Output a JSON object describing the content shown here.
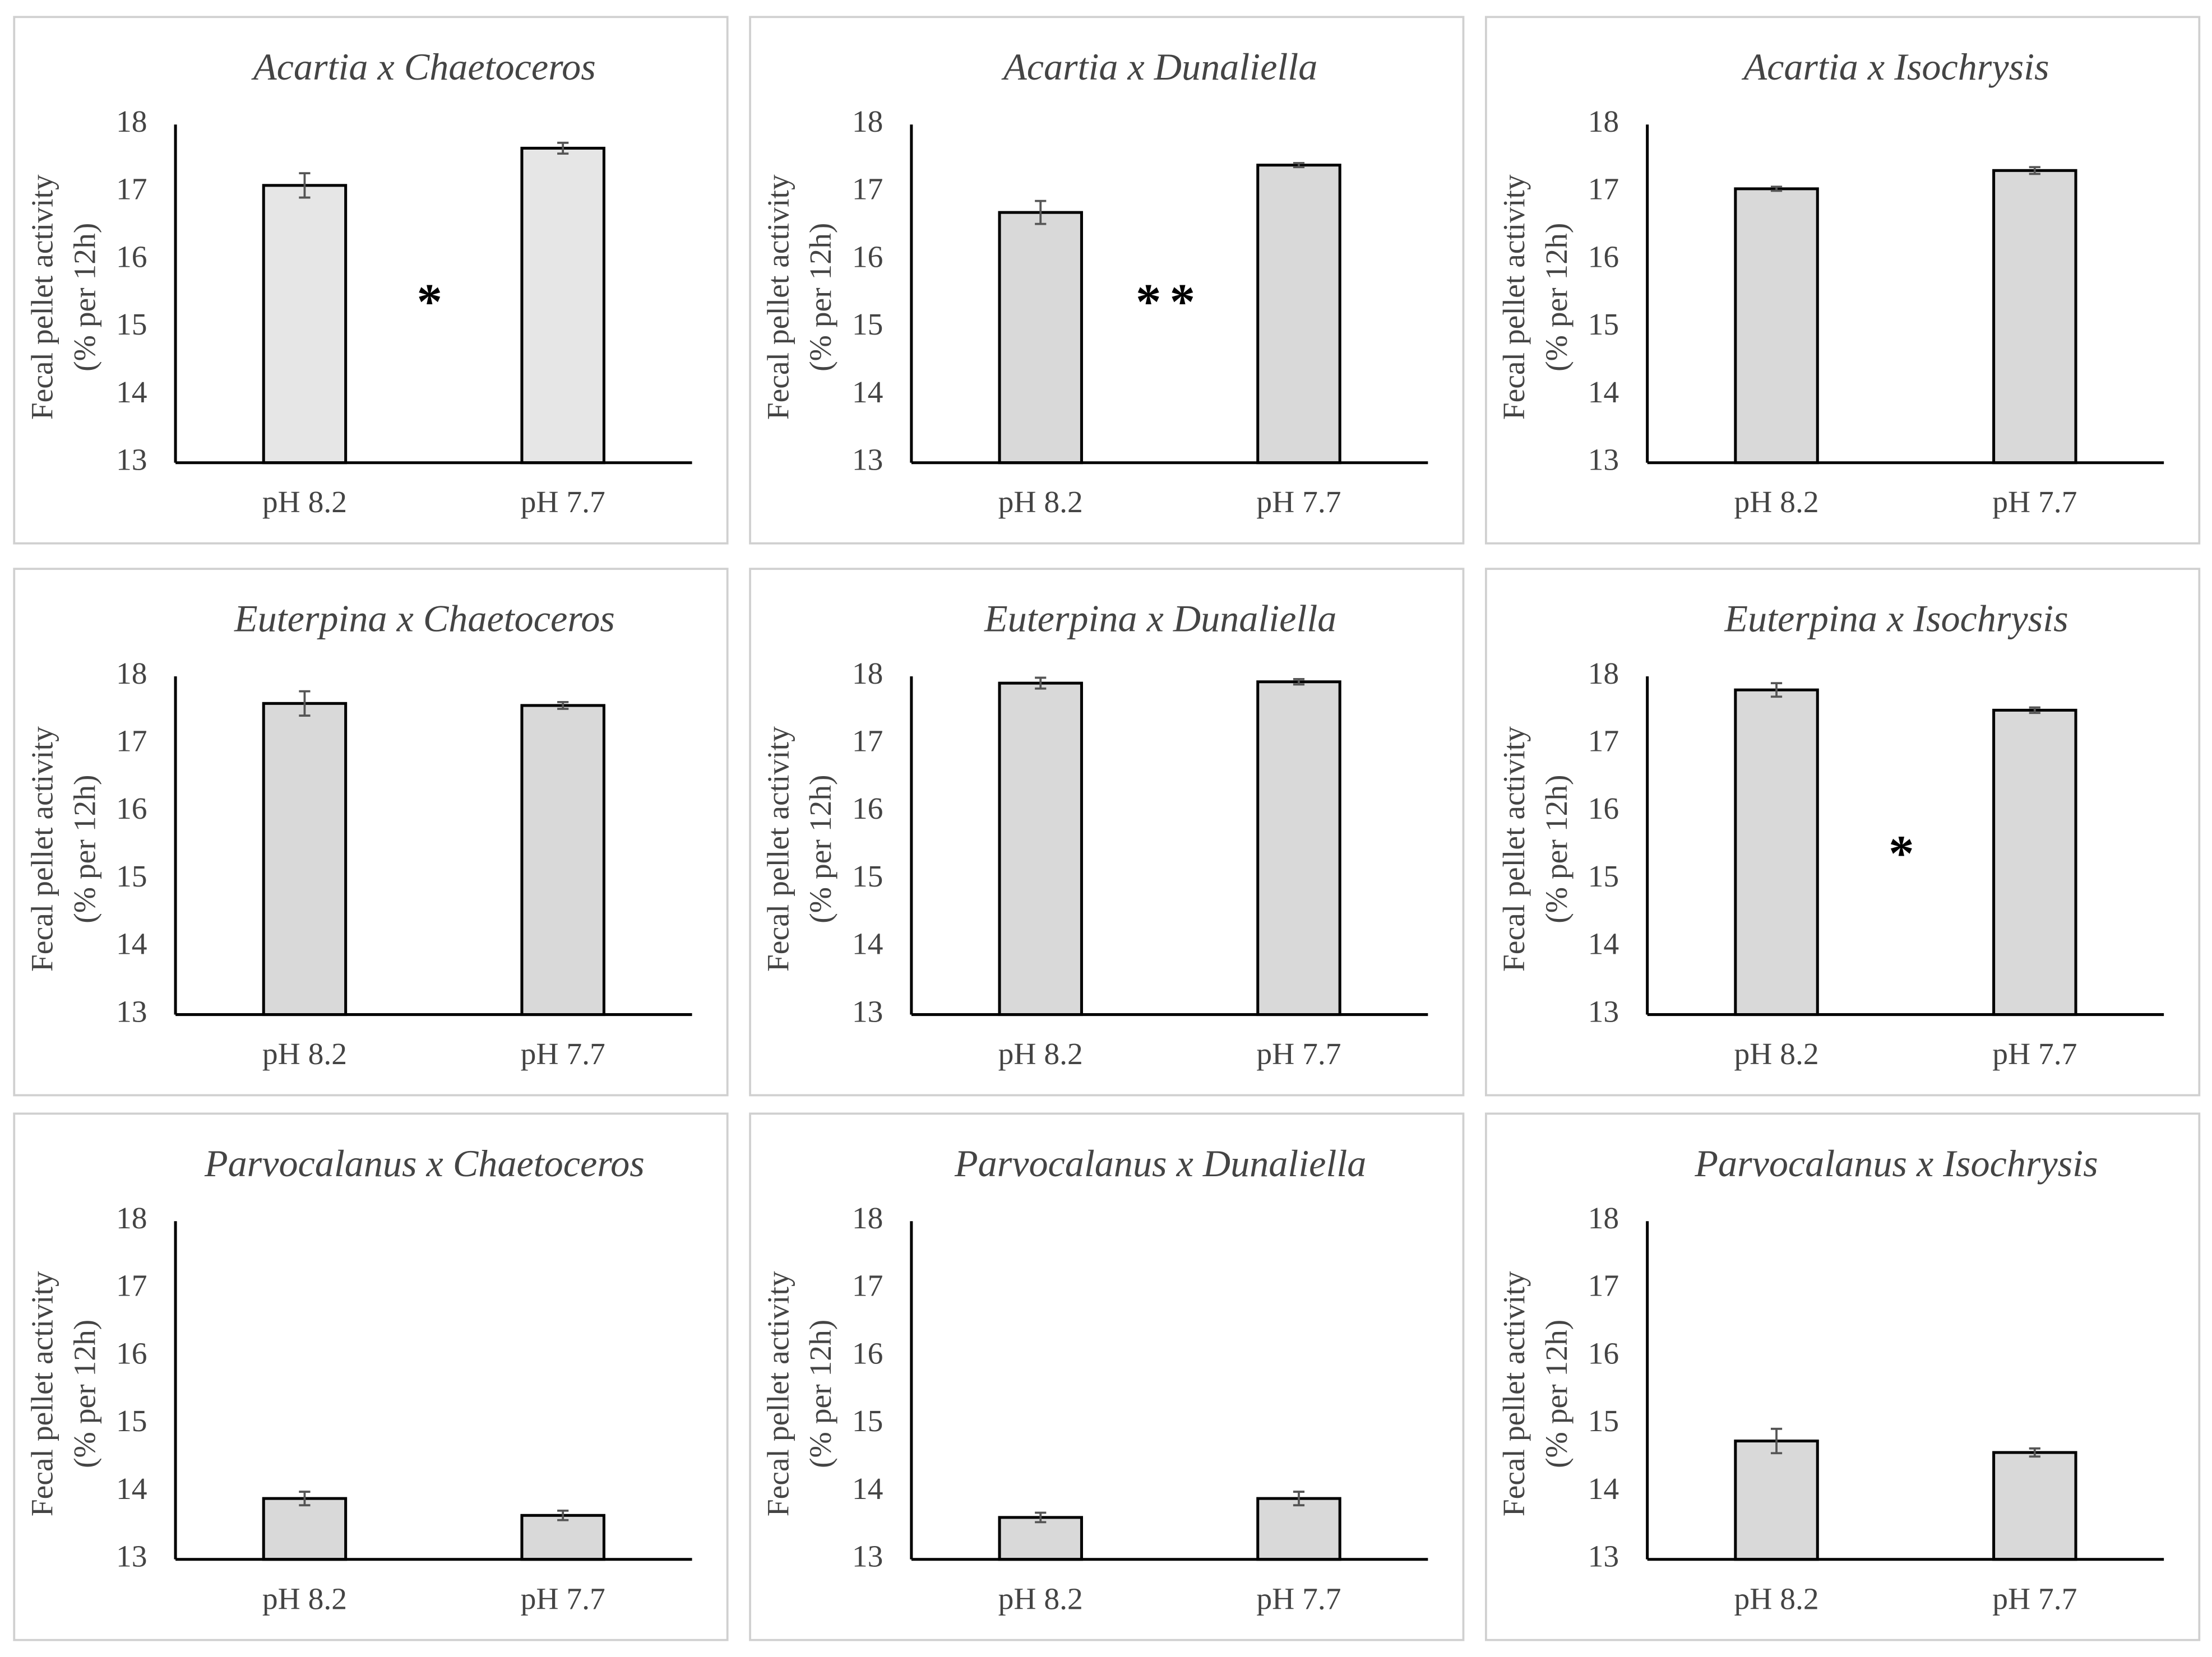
{
  "chart_data": [
    {
      "type": "bar",
      "title": "Acartia x Chaetoceros",
      "ylabel": [
        "Fecal pellet activity",
        "(% per 12h)"
      ],
      "categories": [
        "pH 8.2",
        "pH 7.7"
      ],
      "values": [
        17.1,
        17.65
      ],
      "errors": [
        0.18,
        0.08
      ],
      "color": "#e6e6e6",
      "ylim": [
        13,
        18
      ],
      "yticks": [
        13,
        14,
        15,
        16,
        17,
        18
      ],
      "annotation": "*"
    },
    {
      "type": "bar",
      "title": "Acartia x Dunaliella",
      "ylabel": [
        "Fecal pellet activity",
        "(% per 12h)"
      ],
      "categories": [
        "pH 8.2",
        "pH 7.7"
      ],
      "values": [
        16.7,
        17.4
      ],
      "errors": [
        0.17,
        0.03
      ],
      "color": "#d9d9d9",
      "ylim": [
        13,
        18
      ],
      "yticks": [
        13,
        14,
        15,
        16,
        17,
        18
      ],
      "annotation": "**"
    },
    {
      "type": "bar",
      "title": "Acartia x Isochrysis",
      "ylabel": [
        "Fecal pellet activity",
        "(% per 12h)"
      ],
      "categories": [
        "pH 8.2",
        "pH 7.7"
      ],
      "values": [
        17.05,
        17.32
      ],
      "errors": [
        0.03,
        0.05
      ],
      "color": "#d9d9d9",
      "ylim": [
        13,
        18
      ],
      "yticks": [
        13,
        14,
        15,
        16,
        17,
        18
      ]
    },
    {
      "type": "bar",
      "title": "Euterpina x Chaetoceros",
      "ylabel": [
        "Fecal pellet activity",
        "(% per 12h)"
      ],
      "categories": [
        "pH 8.2",
        "pH 7.7"
      ],
      "values": [
        17.6,
        17.57
      ],
      "errors": [
        0.18,
        0.05
      ],
      "color": "#d9d9d9",
      "ylim": [
        13,
        18
      ],
      "yticks": [
        13,
        14,
        15,
        16,
        17,
        18
      ]
    },
    {
      "type": "bar",
      "title": "Euterpina x Dunaliella",
      "ylabel": [
        "Fecal pellet activity",
        "(% per 12h)"
      ],
      "categories": [
        "pH 8.2",
        "pH 7.7"
      ],
      "values": [
        17.9,
        17.92
      ],
      "errors": [
        0.08,
        0.04
      ],
      "color": "#d9d9d9",
      "ylim": [
        13,
        18
      ],
      "yticks": [
        13,
        14,
        15,
        16,
        17,
        18
      ]
    },
    {
      "type": "bar",
      "title": "Euterpina x Isochrysis",
      "ylabel": [
        "Fecal pellet activity",
        "(% per 12h)"
      ],
      "categories": [
        "pH 8.2",
        "pH 7.7"
      ],
      "values": [
        17.8,
        17.5
      ],
      "errors": [
        0.1,
        0.04
      ],
      "color": "#d9d9d9",
      "ylim": [
        13,
        18
      ],
      "yticks": [
        13,
        14,
        15,
        16,
        17,
        18
      ],
      "annotation": "*"
    },
    {
      "type": "bar",
      "title": "Parvocalanus x Chaetoceros",
      "ylabel": [
        "Fecal pellet activity",
        "(% per 12h)"
      ],
      "categories": [
        "pH 8.2",
        "pH 7.7"
      ],
      "values": [
        13.9,
        13.65
      ],
      "errors": [
        0.1,
        0.07
      ],
      "color": "#d9d9d9",
      "ylim": [
        13,
        18
      ],
      "yticks": [
        13,
        14,
        15,
        16,
        17,
        18
      ]
    },
    {
      "type": "bar",
      "title": "Parvocalanus x Dunaliella",
      "ylabel": [
        "Fecal pellet activity",
        "(% per 12h)"
      ],
      "categories": [
        "pH 8.2",
        "pH 7.7"
      ],
      "values": [
        13.62,
        13.9
      ],
      "errors": [
        0.07,
        0.1
      ],
      "color": "#d9d9d9",
      "ylim": [
        13,
        18
      ],
      "yticks": [
        13,
        14,
        15,
        16,
        17,
        18
      ]
    },
    {
      "type": "bar",
      "title": "Parvocalanus x Isochrysis",
      "ylabel": [
        "Fecal pellet activity",
        "(% per 12h)"
      ],
      "categories": [
        "pH 8.2",
        "pH 7.7"
      ],
      "values": [
        14.75,
        14.58
      ],
      "errors": [
        0.18,
        0.06
      ],
      "color": "#d9d9d9",
      "ylim": [
        13,
        18
      ],
      "yticks": [
        13,
        14,
        15,
        16,
        17,
        18
      ]
    }
  ]
}
